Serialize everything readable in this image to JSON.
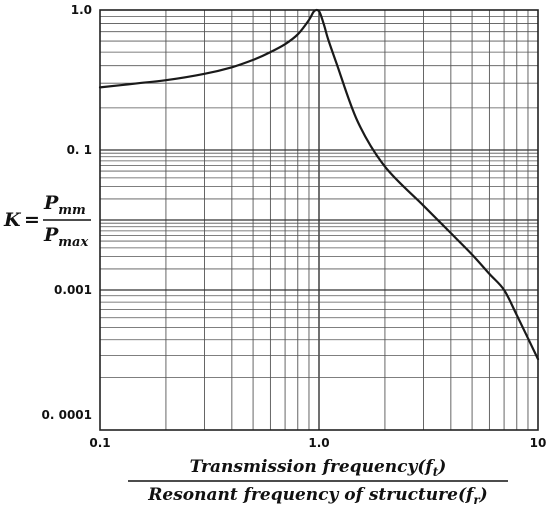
{
  "chart_data": {
    "type": "line",
    "title": "",
    "x_scale": "log",
    "y_scale": "log",
    "xlim": [
      0.1,
      10
    ],
    "grid": true,
    "legend": "none",
    "x_tick_labels": [
      {
        "value": 0.1,
        "label": "0.1"
      },
      {
        "value": 1.0,
        "label": "1.0"
      },
      {
        "value": 10,
        "label": "10"
      }
    ],
    "y_tick_labels": [
      {
        "value": 1.0,
        "label": "1.0"
      },
      {
        "value": 0.1,
        "label": "0. 1"
      },
      {
        "value": 0.001,
        "label": "0.001"
      },
      {
        "value": 0.0001,
        "label": "0. 0001"
      }
    ],
    "xlabel": {
      "numerator": {
        "text": "Transmission frequency(",
        "var": "f",
        "sub": "t",
        "close": ")"
      },
      "denominator": {
        "text": "Resonant frequency of structure(",
        "var": "f",
        "sub": "r",
        "close": ")"
      }
    },
    "ylabel": {
      "lhs": "K",
      "eq": "=",
      "numerator": {
        "var": "P",
        "sub": "mm"
      },
      "denominator": {
        "var": "P",
        "sub": "max"
      }
    },
    "line_color": "#1a1a1a",
    "grid_color": "#555555",
    "series": [
      {
        "x": [
          0.1,
          0.15,
          0.2,
          0.3,
          0.4,
          0.5,
          0.6,
          0.7,
          0.8,
          0.9,
          0.95,
          1.0,
          1.05,
          1.1,
          1.2,
          1.5,
          2,
          3,
          4,
          5,
          6,
          7,
          8,
          10
        ],
        "y": [
          0.28,
          0.3,
          0.315,
          0.35,
          0.39,
          0.44,
          0.5,
          0.57,
          0.67,
          0.85,
          0.98,
          0.98,
          0.8,
          0.62,
          0.42,
          0.16,
          0.058,
          0.016,
          0.0065,
          0.0032,
          0.0017,
          0.001,
          0.00063,
          0.00028
        ]
      }
    ]
  }
}
